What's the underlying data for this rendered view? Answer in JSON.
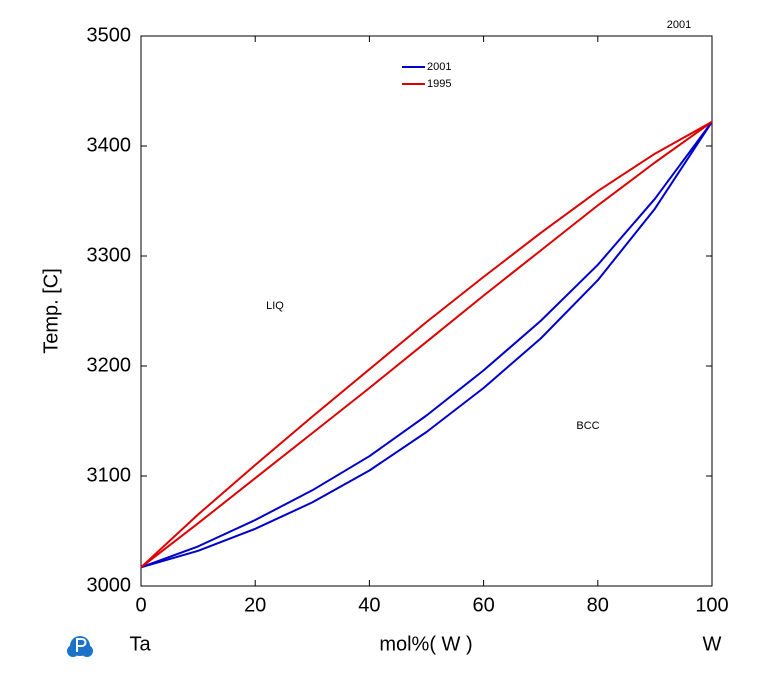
{
  "chart_data": {
    "type": "line",
    "title": "2001",
    "x_label": "mol%(  W  )",
    "y_label": "Temp.  [C]",
    "left_element": "Ta",
    "right_element": "W",
    "annotations": [
      "LIQ",
      "BCC"
    ],
    "x": [
      0,
      10,
      20,
      30,
      40,
      50,
      60,
      70,
      80,
      90,
      100
    ],
    "series": [
      {
        "name": "2001",
        "color": "#0000cc",
        "values": [
          3017,
          3036,
          3060,
          3087,
          3118,
          3155,
          3196,
          3241,
          3292,
          3352,
          3422
        ]
      },
      {
        "color": "#0000cc",
        "values": [
          3017,
          3032,
          3052,
          3076,
          3105,
          3140,
          3180,
          3225,
          3278,
          3343,
          3422
        ]
      },
      {
        "name": "1995",
        "color": "#dd0000",
        "values": [
          3017,
          3065,
          3110,
          3154,
          3197,
          3240,
          3281,
          3321,
          3359,
          3393,
          3422
        ]
      },
      {
        "color": "#dd0000",
        "values": [
          3017,
          3057,
          3098,
          3139,
          3180,
          3222,
          3264,
          3305,
          3346,
          3385,
          3422
        ]
      }
    ],
    "xlim": [
      0,
      100
    ],
    "xticks": [
      0,
      20,
      40,
      60,
      80,
      100
    ],
    "ylim": [
      3000,
      3500
    ],
    "yticks": [
      3000,
      3100,
      3200,
      3300,
      3400,
      3500
    ],
    "grid": false
  }
}
